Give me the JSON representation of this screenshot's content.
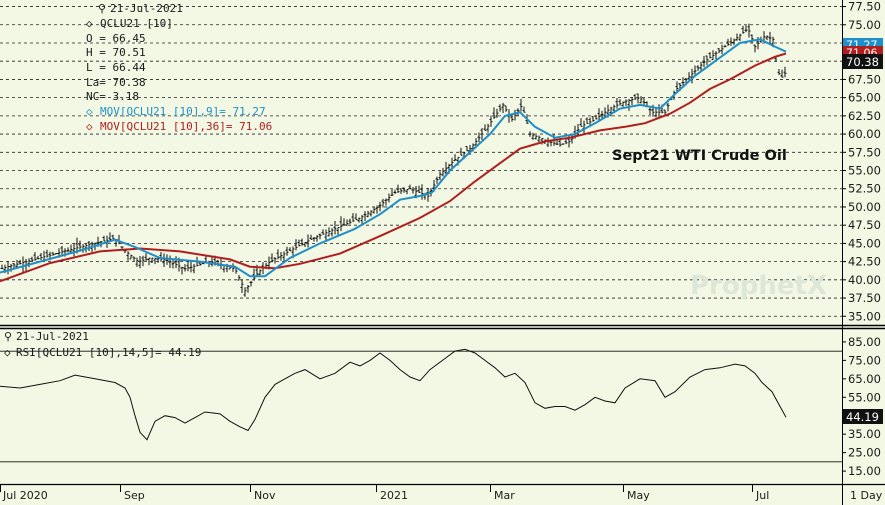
{
  "chart_data": [
    {
      "type": "ohlc-candlestick-with-moving-averages",
      "panel": "price",
      "date": "21-Jul-2021",
      "symbol": "QCLU21 [10]",
      "title": "Sept21 WTI Crude Oil",
      "watermark": "ProphetX",
      "ohlc_text": {
        "open": "O = 66.45",
        "high": "H = 70.51",
        "low": "L = 66.44",
        "last": "La= 70.38",
        "net_change": "NC= 3.18"
      },
      "ma9_label": "MOV[QCLU21 [10],9]= 71.27",
      "ma36_label": "MOV[QCLU21 [10],36]= 71.06",
      "last_price_label": "70.38",
      "ma_tag_labels": [
        "71.27",
        "71.06"
      ],
      "y_ticks": [
        "77.50",
        "75.00",
        "72.50",
        "70.00",
        "67.50",
        "65.00",
        "62.50",
        "60.00",
        "57.50",
        "55.00",
        "52.50",
        "50.00",
        "47.50",
        "45.00",
        "42.50",
        "40.00",
        "37.50",
        "35.00"
      ],
      "ylim": [
        33.8,
        78.4
      ],
      "grid": "horizontal dashed",
      "close_path": [
        [
          0,
          41.5
        ],
        [
          40,
          43.0
        ],
        [
          80,
          44.5
        ],
        [
          115,
          45.7
        ],
        [
          125,
          44.0
        ],
        [
          138,
          42.5
        ],
        [
          150,
          43.0
        ],
        [
          165,
          42.8
        ],
        [
          185,
          41.5
        ],
        [
          210,
          42.5
        ],
        [
          235,
          41.5
        ],
        [
          245,
          38.5
        ],
        [
          258,
          41.0
        ],
        [
          270,
          42.5
        ],
        [
          290,
          44.0
        ],
        [
          310,
          45.5
        ],
        [
          335,
          47.0
        ],
        [
          360,
          48.5
        ],
        [
          378,
          50.0
        ],
        [
          395,
          52.0
        ],
        [
          410,
          52.5
        ],
        [
          428,
          51.5
        ],
        [
          440,
          54.5
        ],
        [
          455,
          56.5
        ],
        [
          470,
          58.0
        ],
        [
          485,
          60.5
        ],
        [
          495,
          62.5
        ],
        [
          503,
          64.0
        ],
        [
          512,
          62.0
        ],
        [
          522,
          64.0
        ],
        [
          530,
          60.0
        ],
        [
          540,
          59.5
        ],
        [
          548,
          59.0
        ],
        [
          560,
          58.5
        ],
        [
          570,
          59.0
        ],
        [
          580,
          61.0
        ],
        [
          595,
          62.0
        ],
        [
          610,
          63.5
        ],
        [
          625,
          64.5
        ],
        [
          640,
          65.0
        ],
        [
          652,
          63.0
        ],
        [
          665,
          63.0
        ],
        [
          675,
          66.0
        ],
        [
          690,
          68.0
        ],
        [
          705,
          70.0
        ],
        [
          720,
          71.5
        ],
        [
          735,
          73.0
        ],
        [
          748,
          74.5
        ],
        [
          755,
          72.0
        ],
        [
          765,
          73.5
        ],
        [
          773,
          73.0
        ],
        [
          780,
          67.5
        ],
        [
          786,
          68.5
        ]
      ],
      "ma9_path": [
        [
          0,
          41.0
        ],
        [
          40,
          42.5
        ],
        [
          80,
          44.0
        ],
        [
          115,
          45.5
        ],
        [
          135,
          44.5
        ],
        [
          160,
          43.0
        ],
        [
          200,
          42.5
        ],
        [
          235,
          41.8
        ],
        [
          250,
          40.5
        ],
        [
          265,
          40.5
        ],
        [
          290,
          43.0
        ],
        [
          320,
          45.0
        ],
        [
          355,
          47.0
        ],
        [
          380,
          49.0
        ],
        [
          400,
          51.0
        ],
        [
          420,
          51.5
        ],
        [
          432,
          52.0
        ],
        [
          450,
          55.0
        ],
        [
          470,
          57.5
        ],
        [
          490,
          60.0
        ],
        [
          505,
          62.5
        ],
        [
          520,
          63.0
        ],
        [
          535,
          61.0
        ],
        [
          555,
          59.5
        ],
        [
          575,
          60.0
        ],
        [
          595,
          61.5
        ],
        [
          620,
          63.5
        ],
        [
          640,
          64.0
        ],
        [
          660,
          63.5
        ],
        [
          675,
          65.5
        ],
        [
          695,
          68.0
        ],
        [
          720,
          70.5
        ],
        [
          740,
          72.5
        ],
        [
          760,
          73.0
        ],
        [
          775,
          72.0
        ],
        [
          786,
          71.3
        ]
      ],
      "ma36_path": [
        [
          0,
          39.8
        ],
        [
          50,
          42.3
        ],
        [
          100,
          43.9
        ],
        [
          140,
          44.3
        ],
        [
          180,
          43.9
        ],
        [
          230,
          42.8
        ],
        [
          250,
          41.8
        ],
        [
          275,
          41.6
        ],
        [
          300,
          42.2
        ],
        [
          340,
          43.6
        ],
        [
          380,
          46.0
        ],
        [
          420,
          48.5
        ],
        [
          450,
          50.8
        ],
        [
          475,
          53.5
        ],
        [
          500,
          56.0
        ],
        [
          520,
          58.0
        ],
        [
          545,
          59.0
        ],
        [
          570,
          59.5
        ],
        [
          600,
          60.5
        ],
        [
          625,
          61.0
        ],
        [
          645,
          61.5
        ],
        [
          670,
          62.8
        ],
        [
          690,
          64.3
        ],
        [
          710,
          66.2
        ],
        [
          730,
          67.5
        ],
        [
          755,
          69.4
        ],
        [
          775,
          70.6
        ],
        [
          786,
          71.06
        ]
      ],
      "colors": {
        "price_bars": "#111111",
        "ma9": "#1e8fc8",
        "ma36": "#b01e1e",
        "last_tag": "#111111",
        "ma9_tag": "#1e8fc8",
        "ma36_tag": "#b01e1e",
        "background": "#f2f8e4"
      }
    },
    {
      "type": "line",
      "panel": "rsi",
      "date": "21-Jul-2021",
      "label": "RSI[QCLU21 [10],14,5]= 44.19",
      "last_value_label": "44.19",
      "y_ticks": [
        "85.00",
        "75.00",
        "65.00",
        "55.00",
        "45.00",
        "35.00",
        "25.00",
        "15.00"
      ],
      "ylim": [
        8,
        92
      ],
      "reference_lines": [
        80,
        20
      ],
      "path": [
        [
          0,
          61
        ],
        [
          20,
          60
        ],
        [
          40,
          62
        ],
        [
          60,
          64
        ],
        [
          75,
          67
        ],
        [
          95,
          65
        ],
        [
          115,
          63
        ],
        [
          125,
          60
        ],
        [
          130,
          55
        ],
        [
          135,
          45
        ],
        [
          140,
          36
        ],
        [
          147,
          32
        ],
        [
          155,
          42
        ],
        [
          165,
          45
        ],
        [
          175,
          44
        ],
        [
          185,
          41
        ],
        [
          195,
          44
        ],
        [
          205,
          47
        ],
        [
          220,
          46
        ],
        [
          230,
          42
        ],
        [
          240,
          39
        ],
        [
          248,
          37
        ],
        [
          255,
          43
        ],
        [
          265,
          55
        ],
        [
          275,
          62
        ],
        [
          285,
          65
        ],
        [
          295,
          68
        ],
        [
          305,
          70
        ],
        [
          320,
          65
        ],
        [
          335,
          68
        ],
        [
          350,
          74
        ],
        [
          360,
          72
        ],
        [
          370,
          75
        ],
        [
          380,
          79
        ],
        [
          390,
          75
        ],
        [
          400,
          70
        ],
        [
          410,
          66
        ],
        [
          420,
          64
        ],
        [
          430,
          70
        ],
        [
          445,
          76
        ],
        [
          455,
          80
        ],
        [
          465,
          81
        ],
        [
          475,
          79
        ],
        [
          485,
          75
        ],
        [
          495,
          71
        ],
        [
          505,
          66
        ],
        [
          515,
          68
        ],
        [
          525,
          63
        ],
        [
          535,
          52
        ],
        [
          545,
          49
        ],
        [
          555,
          50
        ],
        [
          565,
          50
        ],
        [
          575,
          48
        ],
        [
          585,
          51
        ],
        [
          595,
          55
        ],
        [
          605,
          53
        ],
        [
          615,
          52
        ],
        [
          625,
          60
        ],
        [
          640,
          65
        ],
        [
          655,
          64
        ],
        [
          665,
          55
        ],
        [
          675,
          58
        ],
        [
          690,
          66
        ],
        [
          705,
          70
        ],
        [
          720,
          71
        ],
        [
          735,
          73
        ],
        [
          745,
          72
        ],
        [
          755,
          68
        ],
        [
          762,
          63
        ],
        [
          772,
          58
        ],
        [
          778,
          52
        ],
        [
          786,
          44.19
        ]
      ]
    },
    {
      "panel": "time_axis",
      "x_labels": [
        "Jul 2020",
        "Sep",
        "Nov",
        "2021",
        "Mar",
        "May",
        "Jul",
        "1 Day"
      ]
    }
  ]
}
